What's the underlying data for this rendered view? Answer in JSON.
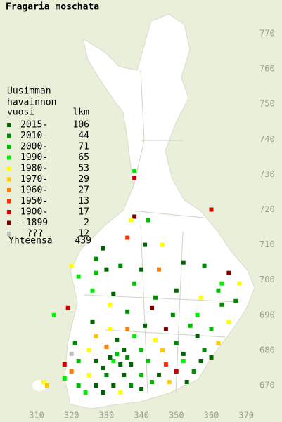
{
  "title": "Fragaria moschata",
  "legend": {
    "heading": [
      "Uusimman",
      "havainnon",
      "vuosi"
    ],
    "count_heading": "lkm",
    "entries": [
      {
        "label": "2015-",
        "count": 106,
        "color": "#006400"
      },
      {
        "label": "2010-",
        "count": 44,
        "color": "#008c00"
      },
      {
        "label": "2000-",
        "count": 71,
        "color": "#00bf00"
      },
      {
        "label": "1990-",
        "count": 65,
        "color": "#00f000"
      },
      {
        "label": "1980-",
        "count": 53,
        "color": "#ffff00"
      },
      {
        "label": "1970-",
        "count": 29,
        "color": "#ffc800"
      },
      {
        "label": "1960-",
        "count": 27,
        "color": "#ff8000"
      },
      {
        "label": "1950-",
        "count": 13,
        "color": "#ff3000"
      },
      {
        "label": "1900-",
        "count": 17,
        "color": "#d00000"
      },
      {
        "label": "-1899",
        "count": 2,
        "color": "#800000"
      },
      {
        "label": "???",
        "count": 12,
        "color": "#c0c0c0"
      }
    ],
    "total_label": "Yhteensä",
    "total": 439
  },
  "xticks": [
    310,
    320,
    330,
    340,
    350,
    360,
    370
  ],
  "yticks": [
    770,
    760,
    750,
    740,
    730,
    720,
    710,
    700,
    690,
    680,
    670
  ],
  "squares": [
    [
      338,
      731,
      3
    ],
    [
      338,
      729,
      8
    ],
    [
      338,
      718,
      9
    ],
    [
      337,
      717,
      4
    ],
    [
      342,
      717,
      2
    ],
    [
      360,
      720,
      8
    ],
    [
      329,
      709,
      0
    ],
    [
      336,
      712,
      7
    ],
    [
      341,
      710,
      0
    ],
    [
      346,
      710,
      4
    ],
    [
      327,
      706,
      1
    ],
    [
      330,
      703,
      0
    ],
    [
      327,
      702,
      2
    ],
    [
      322,
      701,
      3
    ],
    [
      320,
      704,
      4
    ],
    [
      334,
      704,
      1
    ],
    [
      340,
      703,
      0
    ],
    [
      345,
      703,
      6
    ],
    [
      352,
      705,
      0
    ],
    [
      358,
      704,
      1
    ],
    [
      365,
      702,
      9
    ],
    [
      363,
      699,
      3
    ],
    [
      368,
      699,
      4
    ],
    [
      362,
      697,
      2
    ],
    [
      357,
      695,
      4
    ],
    [
      350,
      697,
      0
    ],
    [
      344,
      695,
      1
    ],
    [
      338,
      699,
      2
    ],
    [
      332,
      696,
      0
    ],
    [
      326,
      697,
      3
    ],
    [
      331,
      693,
      4
    ],
    [
      336,
      691,
      1
    ],
    [
      343,
      692,
      9
    ],
    [
      349,
      690,
      1
    ],
    [
      356,
      690,
      3
    ],
    [
      363,
      693,
      1
    ],
    [
      367,
      694,
      1
    ],
    [
      365,
      688,
      4
    ],
    [
      360,
      686,
      2
    ],
    [
      354,
      687,
      2
    ],
    [
      347,
      686,
      9
    ],
    [
      341,
      687,
      0
    ],
    [
      336,
      686,
      6
    ],
    [
      331,
      686,
      4
    ],
    [
      327,
      684,
      5
    ],
    [
      333,
      683,
      0
    ],
    [
      338,
      684,
      3
    ],
    [
      344,
      683,
      4
    ],
    [
      350,
      682,
      1
    ],
    [
      356,
      684,
      0
    ],
    [
      362,
      682,
      5
    ],
    [
      358,
      680,
      1
    ],
    [
      352,
      679,
      0
    ],
    [
      346,
      680,
      5
    ],
    [
      340,
      680,
      2
    ],
    [
      335,
      680,
      0
    ],
    [
      330,
      681,
      6
    ],
    [
      325,
      680,
      4
    ],
    [
      320,
      679,
      10
    ],
    [
      322,
      677,
      2
    ],
    [
      327,
      677,
      0
    ],
    [
      332,
      677,
      3
    ],
    [
      337,
      676,
      0
    ],
    [
      342,
      677,
      2
    ],
    [
      347,
      676,
      7
    ],
    [
      352,
      677,
      3
    ],
    [
      357,
      677,
      0
    ],
    [
      360,
      678,
      0
    ],
    [
      355,
      674,
      1
    ],
    [
      350,
      674,
      8
    ],
    [
      345,
      673,
      0
    ],
    [
      340,
      673,
      2
    ],
    [
      335,
      673,
      0
    ],
    [
      330,
      673,
      1
    ],
    [
      325,
      673,
      4
    ],
    [
      320,
      674,
      6
    ],
    [
      318,
      672,
      3
    ],
    [
      322,
      670,
      2
    ],
    [
      327,
      670,
      0
    ],
    [
      332,
      670,
      0
    ],
    [
      337,
      670,
      1
    ],
    [
      340,
      669,
      0
    ],
    [
      343,
      671,
      2
    ],
    [
      348,
      671,
      5
    ],
    [
      353,
      671,
      0
    ],
    [
      324,
      668,
      3
    ],
    [
      329,
      668,
      0
    ],
    [
      334,
      668,
      4
    ],
    [
      318,
      676,
      8
    ],
    [
      321,
      682,
      1
    ],
    [
      326,
      688,
      0
    ],
    [
      315,
      690,
      3
    ],
    [
      319,
      692,
      8
    ],
    [
      312,
      671,
      4
    ],
    [
      313,
      670,
      5
    ],
    [
      331,
      678,
      0
    ],
    [
      333,
      679,
      2
    ],
    [
      336,
      678,
      1
    ],
    [
      334,
      676,
      0
    ],
    [
      329,
      675,
      0
    ]
  ]
}
